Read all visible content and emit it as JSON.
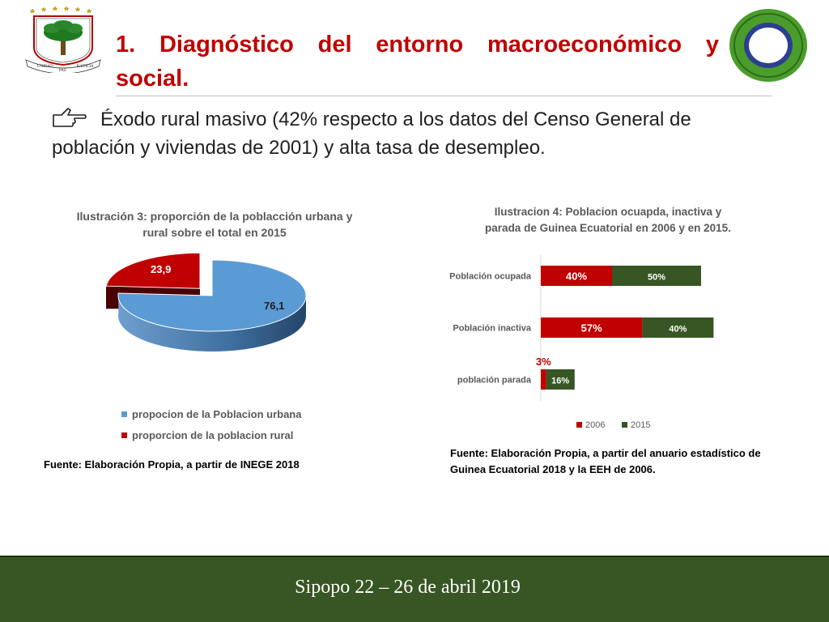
{
  "slide": {
    "title_line1": "1. Diagnóstico del entorno macroeconómico y",
    "title_line2": "social.",
    "bullet_line1": "Éxodo rural masivo (42% respecto a los datos del Censo General de",
    "bullet_line2": "población y viviendas de 2001)  y alta tasa de desempleo.",
    "footer": "Sipopo 22 – 26 de abril 2019",
    "emblem_text": [
      "UNIDAD",
      "PAZ",
      "JUSTICIA"
    ]
  },
  "colors": {
    "title": "#c00000",
    "urbana": "#5b9bd5",
    "rural": "#c00000",
    "series_2006": "#c00000",
    "series_2015": "#375623",
    "footer_bg": "#375623"
  },
  "chart_data": [
    {
      "type": "pie",
      "title_line1": "Ilustración 3: proporción de la poblacción urbana y",
      "title_line2": "rural sobre el total en 2015",
      "slices": [
        {
          "label": "propocion de la Poblacion urbana",
          "value": 76.1,
          "data_label": "76,1"
        },
        {
          "label": "proporcion de la poblacion rural",
          "value": 23.9,
          "data_label": "23,9"
        }
      ],
      "legend": "bottom",
      "source": "Fuente: Elaboración Propia, a partir de INEGE 2018"
    },
    {
      "type": "bar",
      "orientation": "horizontal",
      "stacked": true,
      "title_line1": "Ilustracion 4: Poblacion ocuapda, inactiva y",
      "title_line2": "parada de Guinea Ecuatorial  en 2006 y en 2015.",
      "categories": [
        "Población ocupada",
        "Población inactiva",
        "población parada"
      ],
      "series": [
        {
          "name": "2006",
          "values": [
            40,
            57,
            3
          ],
          "labels": [
            "40%",
            "57%",
            "3%"
          ]
        },
        {
          "name": "2015",
          "values": [
            50,
            40,
            16
          ],
          "labels": [
            "50%",
            "40%",
            "16%"
          ]
        }
      ],
      "legend": "bottom",
      "source_line1": "Fuente: Elaboración Propia, a partir del anuario estadístico de",
      "source_line2": "Guinea Ecuatorial 2018 y la EEH de 2006."
    }
  ]
}
